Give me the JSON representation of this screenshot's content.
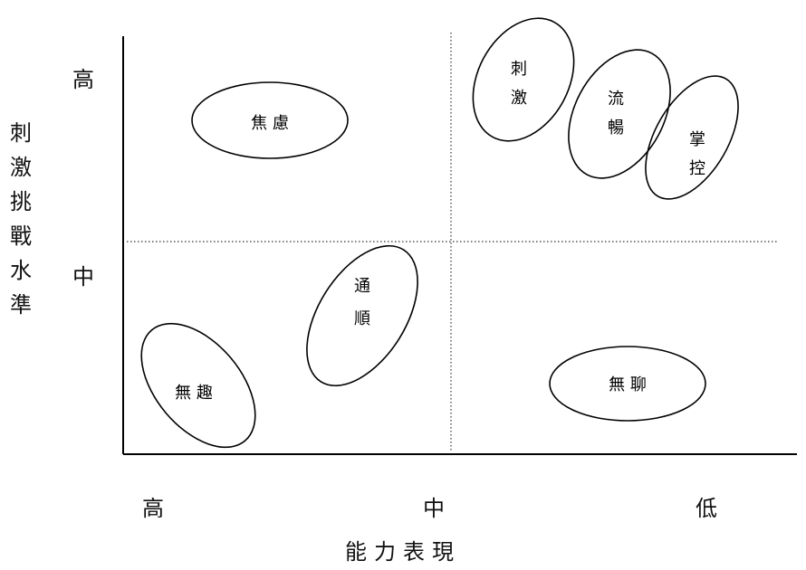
{
  "axes": {
    "y_label_chars": [
      "刺",
      "激",
      "挑",
      "戰",
      "水",
      "準"
    ],
    "x_label": "能力表現",
    "y_ticks": [
      "高",
      "中"
    ],
    "x_ticks": [
      "高",
      "中",
      "低"
    ]
  },
  "regions": [
    {
      "id": "anxiety",
      "lines": [
        "焦 慮"
      ]
    },
    {
      "id": "arousal",
      "lines": [
        "刺",
        "激"
      ]
    },
    {
      "id": "flow",
      "lines": [
        "流",
        "暢"
      ]
    },
    {
      "id": "control",
      "lines": [
        "掌",
        "控"
      ]
    },
    {
      "id": "worry",
      "lines": [
        "通",
        "順"
      ]
    },
    {
      "id": "apathy",
      "lines": [
        "無 趣"
      ]
    },
    {
      "id": "boredom",
      "lines": [
        "無 聊"
      ]
    }
  ]
}
